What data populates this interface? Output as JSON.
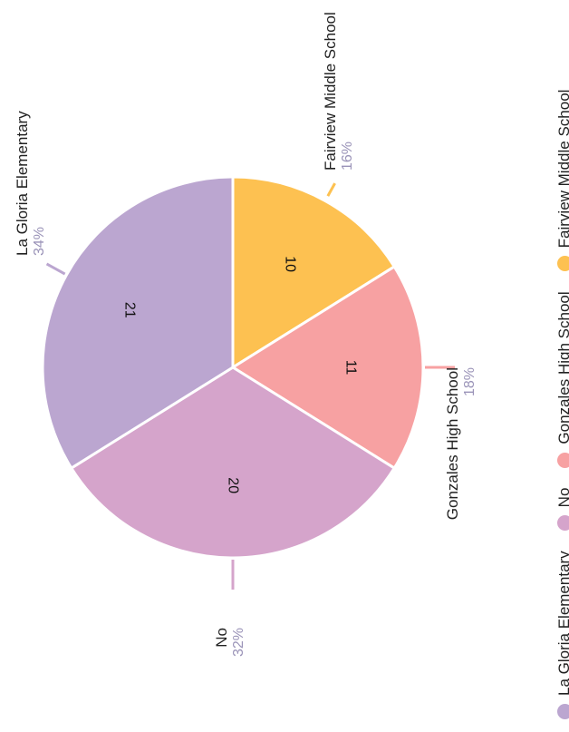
{
  "chart_data": {
    "type": "pie",
    "slices": [
      {
        "label": "Fairview Middle School",
        "value": 10,
        "percent": "16%",
        "color": "#FDC151"
      },
      {
        "label": "Gonzales High School",
        "value": 11,
        "percent": "18%",
        "color": "#F7A1A2"
      },
      {
        "label": "No",
        "value": 20,
        "percent": "32%",
        "color": "#D5A4CB"
      },
      {
        "label": "La Gloria Elementary",
        "value": 21,
        "percent": "34%",
        "color": "#BBA6D0"
      }
    ],
    "legend_position": "right",
    "legend": [
      {
        "label": "La Gloria Elementary",
        "color": "#BBA6D0"
      },
      {
        "label": "No",
        "color": "#D5A4CB"
      },
      {
        "label": "Gonzales High School",
        "color": "#F7A1A2"
      },
      {
        "label": "Fairview Middle School",
        "color": "#FDC151"
      }
    ]
  }
}
